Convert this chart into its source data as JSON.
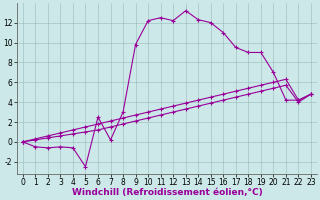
{
  "xlabel": "Windchill (Refroidissement éolien,°C)",
  "background_color": "#cce8e8",
  "line_color": "#990099",
  "xlim": [
    -0.5,
    23.5
  ],
  "ylim": [
    -3.2,
    14.0
  ],
  "xticks": [
    0,
    1,
    2,
    3,
    4,
    5,
    6,
    7,
    8,
    9,
    10,
    11,
    12,
    13,
    14,
    15,
    16,
    17,
    18,
    19,
    20,
    21,
    22,
    23
  ],
  "yticks": [
    -2,
    0,
    2,
    4,
    6,
    8,
    10,
    12
  ],
  "series1_x": [
    0,
    1,
    2,
    3,
    4,
    5,
    6,
    7,
    8,
    9,
    10,
    11,
    12,
    13,
    14,
    15,
    16,
    17,
    18,
    19,
    20,
    21,
    22,
    23
  ],
  "series1_y": [
    0,
    -0.5,
    -0.6,
    -0.5,
    -0.6,
    -2.5,
    2.5,
    0.2,
    3.0,
    9.8,
    12.2,
    12.5,
    12.2,
    13.2,
    12.3,
    12.0,
    11.0,
    9.5,
    9.0,
    9.0,
    7.0,
    4.2,
    4.2,
    4.8
  ],
  "series2_x": [
    0,
    1,
    2,
    3,
    4,
    5,
    6,
    7,
    8,
    9,
    10,
    11,
    12,
    13,
    14,
    15,
    16,
    17,
    18,
    19,
    20,
    21,
    22,
    23
  ],
  "series2_y": [
    0,
    0.2,
    0.4,
    0.6,
    0.8,
    1.0,
    1.2,
    1.5,
    1.8,
    2.1,
    2.4,
    2.7,
    3.0,
    3.3,
    3.6,
    3.9,
    4.2,
    4.5,
    4.8,
    5.1,
    5.4,
    5.7,
    4.0,
    4.8
  ],
  "series3_x": [
    0,
    1,
    2,
    3,
    4,
    5,
    6,
    7,
    8,
    9,
    10,
    11,
    12,
    13,
    14,
    15,
    16,
    17,
    18,
    19,
    20,
    21,
    22,
    23
  ],
  "series3_y": [
    0,
    0.3,
    0.6,
    0.9,
    1.2,
    1.5,
    1.8,
    2.1,
    2.4,
    2.7,
    3.0,
    3.3,
    3.6,
    3.9,
    4.2,
    4.5,
    4.8,
    5.1,
    5.4,
    5.7,
    6.0,
    6.3,
    4.2,
    4.8
  ],
  "grid_color": "#99bbbb",
  "tick_fontsize": 5.5,
  "xlabel_fontsize": 6.5
}
